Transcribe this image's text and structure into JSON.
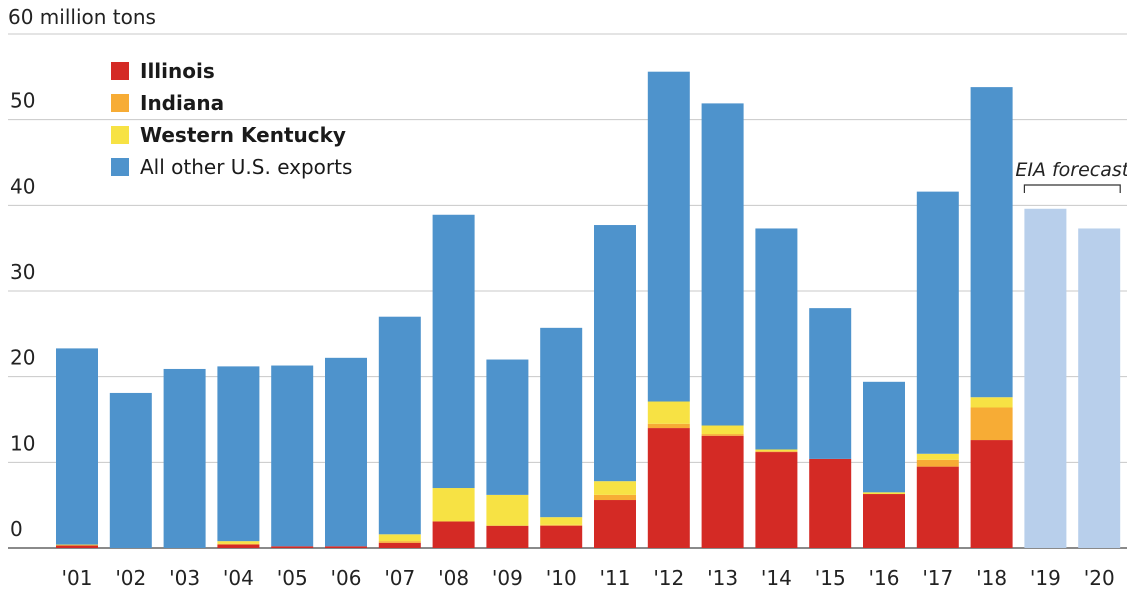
{
  "chart_data": {
    "type": "bar",
    "stacked": true,
    "y_unit_label": "60 million tons",
    "y_ticks": [
      0,
      10,
      20,
      30,
      40,
      50
    ],
    "ylim": [
      0,
      60
    ],
    "grid": true,
    "legend_position": "top-left",
    "categories": [
      "'01",
      "'02",
      "'03",
      "'04",
      "'05",
      "'06",
      "'07",
      "'08",
      "'09",
      "'10",
      "'11",
      "'12",
      "'13",
      "'14",
      "'15",
      "'16",
      "'17",
      "'18",
      "'19",
      "'20"
    ],
    "series": [
      {
        "name": "Illinois",
        "color": "#d42a25",
        "values": [
          0.3,
          0,
          0,
          0.4,
          0.2,
          0.2,
          0.6,
          3.1,
          2.6,
          2.6,
          5.6,
          14.0,
          13.1,
          11.2,
          10.4,
          6.3,
          9.5,
          12.6,
          null,
          null
        ]
      },
      {
        "name": "Indiana",
        "color": "#f7ac35",
        "values": [
          0,
          0,
          0,
          0.1,
          0,
          0,
          0.2,
          0,
          0,
          0.1,
          0.6,
          0.5,
          0.2,
          0.1,
          0,
          0,
          0.8,
          3.8,
          null,
          null
        ]
      },
      {
        "name": "Western Kentucky",
        "color": "#f7e244",
        "values": [
          0.1,
          0,
          0,
          0.3,
          0,
          0,
          0.8,
          3.9,
          3.6,
          0.9,
          1.6,
          2.6,
          1.0,
          0.2,
          0,
          0.2,
          0.7,
          1.2,
          null,
          null
        ]
      },
      {
        "name": "All other U.S. exports",
        "color": "#4e93cc",
        "values": [
          22.9,
          18.1,
          20.9,
          20.4,
          21.1,
          22.0,
          25.4,
          31.9,
          15.8,
          22.1,
          29.9,
          38.5,
          37.6,
          25.8,
          17.6,
          12.9,
          30.6,
          36.2,
          null,
          null
        ]
      },
      {
        "name": "EIA forecast",
        "color": "#b8cfeb",
        "values": [
          null,
          null,
          null,
          null,
          null,
          null,
          null,
          null,
          null,
          null,
          null,
          null,
          null,
          null,
          null,
          null,
          null,
          null,
          39.6,
          37.3
        ]
      }
    ],
    "annotations": [
      {
        "text": "EIA forecast",
        "applies_to": [
          "'19",
          "'20"
        ]
      }
    ]
  }
}
